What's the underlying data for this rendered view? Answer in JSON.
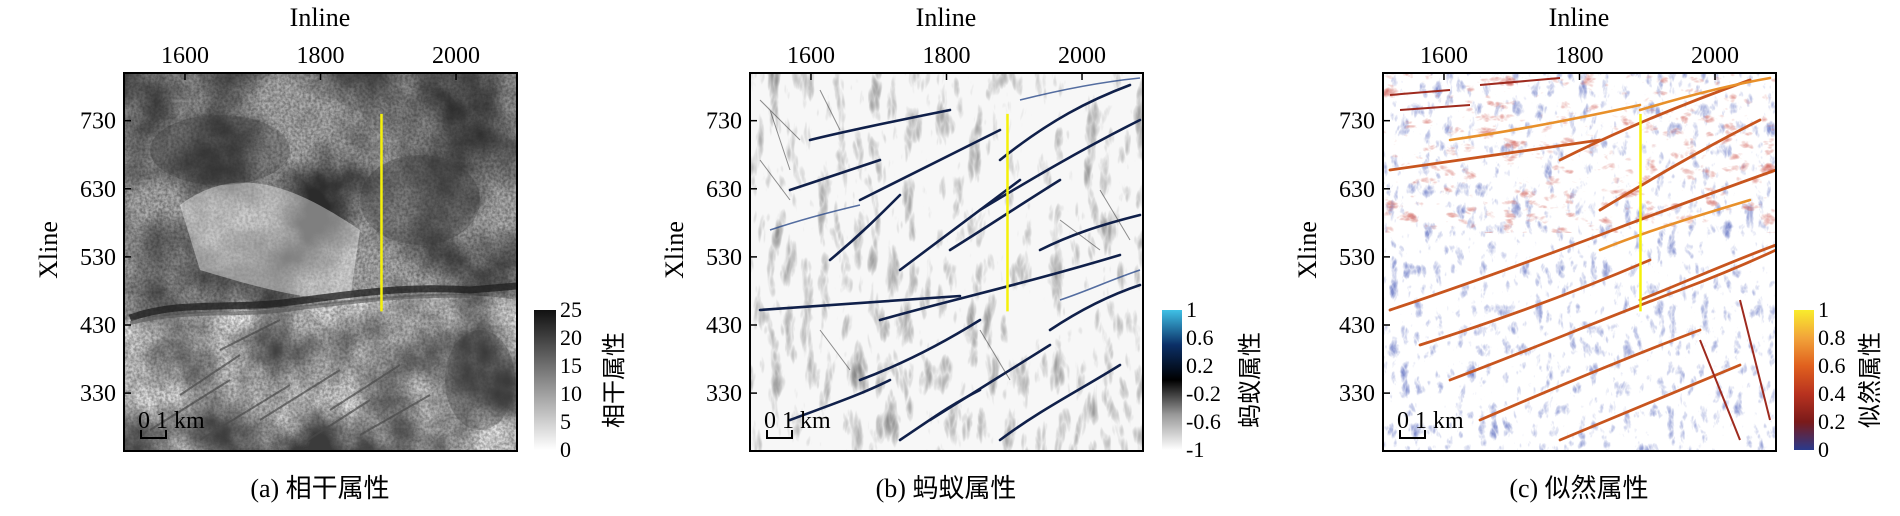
{
  "panels": [
    {
      "id": "a",
      "caption": "(a) 相干属性",
      "xlabel": "Inline",
      "ylabel": "Xline",
      "xticks": [
        "1600",
        "1800",
        "2000"
      ],
      "yticks": [
        "730",
        "630",
        "530",
        "430",
        "330"
      ],
      "colorbar": {
        "title": "相干属性",
        "ticks": [
          "25",
          "20",
          "15",
          "10",
          "5",
          "0"
        ],
        "colors": [
          "#111111",
          "#ffffff"
        ]
      },
      "scalebar": "0 1 km",
      "yellow_line": {
        "inline": 1890,
        "xline_from": 450,
        "xline_to": 740
      }
    },
    {
      "id": "b",
      "caption": "(b) 蚂蚁属性",
      "xlabel": "Inline",
      "ylabel": "Xline",
      "xticks": [
        "1600",
        "1800",
        "2000"
      ],
      "yticks": [
        "730",
        "630",
        "530",
        "430",
        "330"
      ],
      "colorbar": {
        "title": "蚂蚁属性",
        "ticks": [
          "1",
          "0.6",
          "0.2",
          "-0.2",
          "-0.6",
          "-1"
        ],
        "colors": [
          "#3fc1e6",
          "#0b2f66",
          "#000000",
          "#9a9a9a",
          "#ffffff"
        ]
      },
      "scalebar": "0 1 km",
      "yellow_line": {
        "inline": 1890,
        "xline_from": 450,
        "xline_to": 740
      }
    },
    {
      "id": "c",
      "caption": "(c) 似然属性",
      "xlabel": "Inline",
      "ylabel": "Xline",
      "xticks": [
        "1600",
        "1800",
        "2000"
      ],
      "yticks": [
        "730",
        "630",
        "530",
        "430",
        "330"
      ],
      "colorbar": {
        "title": "似然属性",
        "ticks": [
          "1",
          "0.8",
          "0.6",
          "0.4",
          "0.2",
          "0"
        ],
        "colors": [
          "#f9ec2c",
          "#f2a33a",
          "#e0601e",
          "#b8321f",
          "#7a1a1a",
          "#2a3a8c"
        ]
      },
      "scalebar": "0 1 km",
      "yellow_line": {
        "inline": 1890,
        "xline_from": 450,
        "xline_to": 740
      }
    }
  ]
}
